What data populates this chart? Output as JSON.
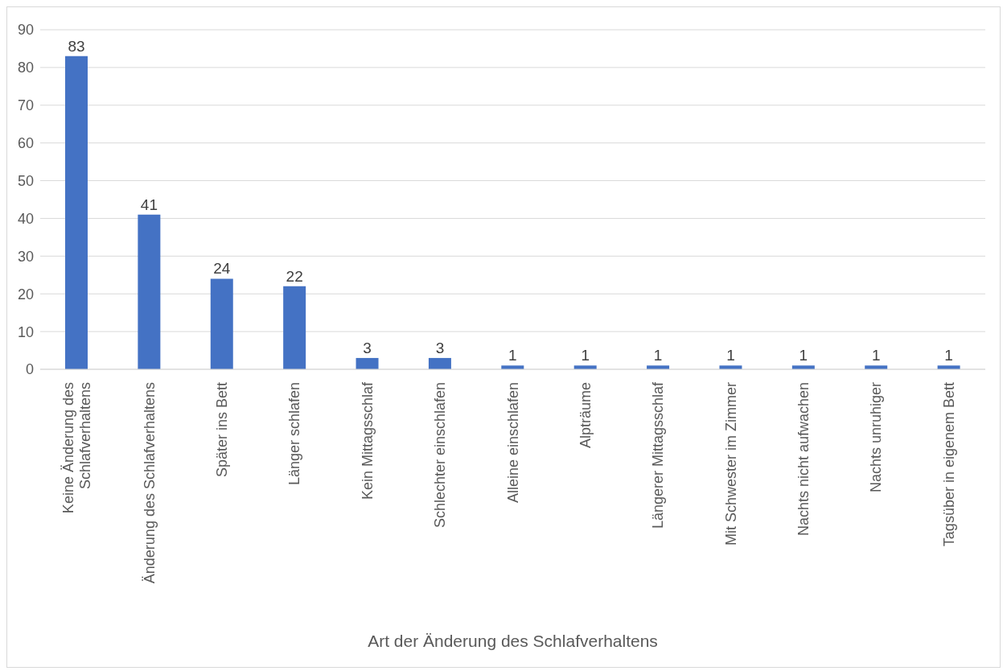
{
  "chart_data": {
    "type": "bar",
    "xlabel": "Art der Änderung des Schlafverhaltens",
    "categories": [
      "Keine Änderung des Schlafverhaltens",
      "Änderung des Schlafverhaltens",
      "Später ins Bett",
      "Länger schlafen",
      "Kein Mittagsschlaf",
      "Schlechter einschlafen",
      "Alleine einschlafen",
      "Alpträume",
      "Längerer Mittagsschlaf",
      "Mit Schwester im Zimmer",
      "Nachts nicht aufwachen",
      "Nachts unruhiger",
      "Tagsüber in eigenem Bett"
    ],
    "values": [
      83,
      41,
      24,
      22,
      3,
      3,
      1,
      1,
      1,
      1,
      1,
      1,
      1
    ],
    "color": "#4472c4",
    "ylim": [
      0,
      90
    ],
    "yticks": [
      0,
      10,
      20,
      30,
      40,
      50,
      60,
      70,
      80,
      90
    ],
    "grid": "y",
    "data_labels": true,
    "legend": false
  }
}
